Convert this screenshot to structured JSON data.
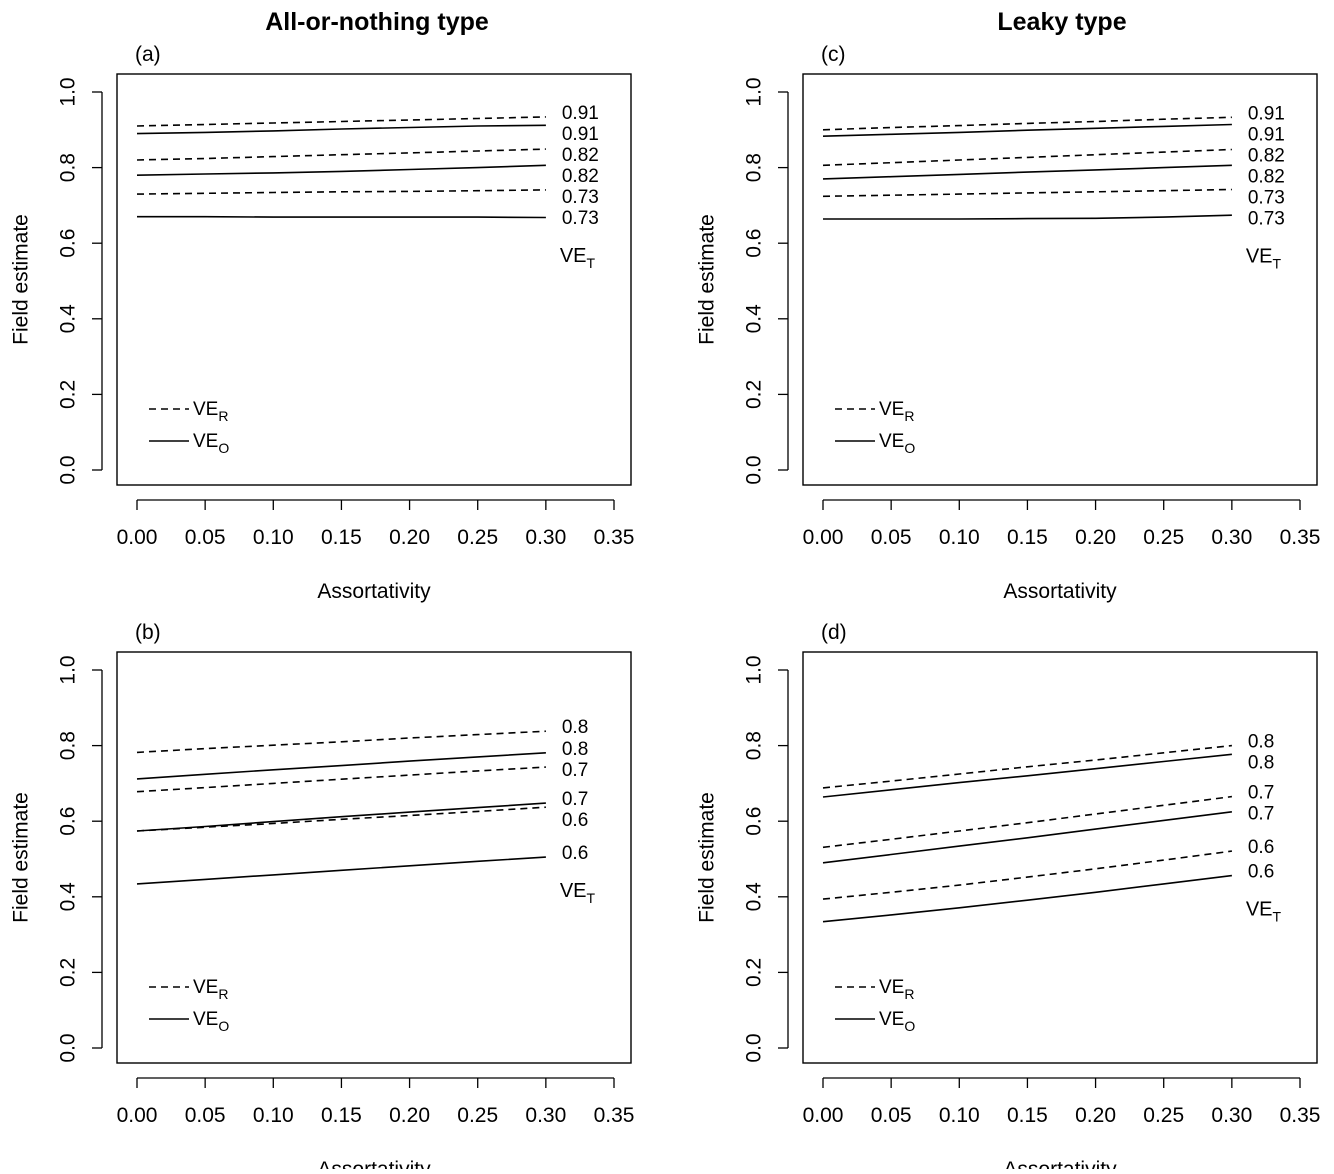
{
  "column_titles": [
    "All-or-nothing type",
    "Leaky type"
  ],
  "chart_data": [
    {
      "type": "line",
      "panel_label": "(a)",
      "xlabel": "Assortativity",
      "ylabel": "Field estimate",
      "xlim": [
        0,
        0.35
      ],
      "ylim": [
        0,
        1
      ],
      "x_ticks": [
        "0.00",
        "0.05",
        "0.10",
        "0.15",
        "0.20",
        "0.25",
        "0.30",
        "0.35"
      ],
      "y_ticks": [
        "0.0",
        "0.2",
        "0.4",
        "0.6",
        "0.8",
        "1.0"
      ],
      "x": [
        0,
        0.05,
        0.1,
        0.15,
        0.2,
        0.25,
        0.3
      ],
      "series": [
        {
          "line_style": "dashed",
          "end_label": "0.91",
          "values": [
            0.91,
            0.914,
            0.918,
            0.922,
            0.926,
            0.93,
            0.934
          ]
        },
        {
          "line_style": "solid",
          "end_label": "0.91",
          "values": [
            0.89,
            0.893,
            0.897,
            0.902,
            0.906,
            0.91,
            0.912
          ]
        },
        {
          "line_style": "dashed",
          "end_label": "0.82",
          "values": [
            0.82,
            0.824,
            0.829,
            0.834,
            0.839,
            0.844,
            0.849
          ]
        },
        {
          "line_style": "solid",
          "end_label": "0.82",
          "values": [
            0.78,
            0.783,
            0.786,
            0.79,
            0.795,
            0.8,
            0.806
          ]
        },
        {
          "line_style": "dashed",
          "end_label": "0.73",
          "values": [
            0.73,
            0.732,
            0.734,
            0.736,
            0.737,
            0.739,
            0.741
          ]
        },
        {
          "line_style": "solid",
          "end_label": "0.73",
          "values": [
            0.67,
            0.67,
            0.669,
            0.669,
            0.669,
            0.669,
            0.668
          ]
        }
      ],
      "annotation": {
        "text": "VE",
        "sub": "T"
      },
      "legend": {
        "position": "bottom-left",
        "entries": [
          {
            "text": "VE",
            "sub": "R",
            "line_style": "dashed"
          },
          {
            "text": "VE",
            "sub": "O",
            "line_style": "solid"
          }
        ]
      }
    },
    {
      "type": "line",
      "panel_label": "(b)",
      "xlabel": "Assortativity",
      "ylabel": "Field estimate",
      "xlim": [
        0,
        0.35
      ],
      "ylim": [
        0,
        1
      ],
      "x_ticks": [
        "0.00",
        "0.05",
        "0.10",
        "0.15",
        "0.20",
        "0.25",
        "0.30",
        "0.35"
      ],
      "y_ticks": [
        "0.0",
        "0.2",
        "0.4",
        "0.6",
        "0.8",
        "1.0"
      ],
      "x": [
        0,
        0.05,
        0.1,
        0.15,
        0.2,
        0.25,
        0.3
      ],
      "series": [
        {
          "line_style": "dashed",
          "end_label": "0.8",
          "values": [
            0.782,
            0.792,
            0.801,
            0.81,
            0.82,
            0.829,
            0.838
          ]
        },
        {
          "line_style": "solid",
          "end_label": "0.8",
          "values": [
            0.712,
            0.724,
            0.736,
            0.747,
            0.759,
            0.77,
            0.781
          ]
        },
        {
          "line_style": "dashed",
          "end_label": "0.7",
          "values": [
            0.678,
            0.689,
            0.7,
            0.711,
            0.722,
            0.733,
            0.743
          ]
        },
        {
          "line_style": "solid",
          "end_label": "0.7",
          "values": [
            0.574,
            0.586,
            0.599,
            0.612,
            0.624,
            0.636,
            0.648
          ]
        },
        {
          "line_style": "dashed",
          "end_label": "0.6",
          "values": [
            0.574,
            0.584,
            0.594,
            0.605,
            0.615,
            0.626,
            0.637
          ]
        },
        {
          "line_style": "solid",
          "end_label": "0.6",
          "values": [
            0.434,
            0.446,
            0.458,
            0.47,
            0.482,
            0.494,
            0.505
          ]
        }
      ],
      "annotation": {
        "text": "VE",
        "sub": "T"
      },
      "legend": {
        "position": "bottom-left",
        "entries": [
          {
            "text": "VE",
            "sub": "R",
            "line_style": "dashed"
          },
          {
            "text": "VE",
            "sub": "O",
            "line_style": "solid"
          }
        ]
      }
    },
    {
      "type": "line",
      "panel_label": "(c)",
      "xlabel": "Assortativity",
      "ylabel": "Field estimate",
      "xlim": [
        0,
        0.35
      ],
      "ylim": [
        0,
        1
      ],
      "x_ticks": [
        "0.00",
        "0.05",
        "0.10",
        "0.15",
        "0.20",
        "0.25",
        "0.30",
        "0.35"
      ],
      "y_ticks": [
        "0.0",
        "0.2",
        "0.4",
        "0.6",
        "0.8",
        "1.0"
      ],
      "x": [
        0,
        0.05,
        0.1,
        0.15,
        0.2,
        0.25,
        0.3
      ],
      "series": [
        {
          "line_style": "dashed",
          "end_label": "0.91",
          "values": [
            0.9,
            0.906,
            0.911,
            0.917,
            0.922,
            0.928,
            0.933
          ]
        },
        {
          "line_style": "solid",
          "end_label": "0.91",
          "values": [
            0.883,
            0.888,
            0.893,
            0.899,
            0.904,
            0.909,
            0.914
          ]
        },
        {
          "line_style": "dashed",
          "end_label": "0.82",
          "values": [
            0.806,
            0.813,
            0.82,
            0.827,
            0.834,
            0.841,
            0.848
          ]
        },
        {
          "line_style": "solid",
          "end_label": "0.82",
          "values": [
            0.77,
            0.776,
            0.782,
            0.788,
            0.794,
            0.8,
            0.806
          ]
        },
        {
          "line_style": "dashed",
          "end_label": "0.73",
          "values": [
            0.724,
            0.727,
            0.73,
            0.733,
            0.736,
            0.739,
            0.742
          ]
        },
        {
          "line_style": "solid",
          "end_label": "0.73",
          "values": [
            0.664,
            0.664,
            0.664,
            0.665,
            0.666,
            0.669,
            0.674
          ]
        }
      ],
      "annotation": {
        "text": "VE",
        "sub": "T"
      },
      "legend": {
        "position": "bottom-left",
        "entries": [
          {
            "text": "VE",
            "sub": "R",
            "line_style": "dashed"
          },
          {
            "text": "VE",
            "sub": "O",
            "line_style": "solid"
          }
        ]
      }
    },
    {
      "type": "line",
      "panel_label": "(d)",
      "xlabel": "Assortativity",
      "ylabel": "Field estimate",
      "xlim": [
        0,
        0.35
      ],
      "ylim": [
        0,
        1
      ],
      "x_ticks": [
        "0.00",
        "0.05",
        "0.10",
        "0.15",
        "0.20",
        "0.25",
        "0.30",
        "0.35"
      ],
      "y_ticks": [
        "0.0",
        "0.2",
        "0.4",
        "0.6",
        "0.8",
        "1.0"
      ],
      "x": [
        0,
        0.05,
        0.1,
        0.15,
        0.2,
        0.25,
        0.3
      ],
      "series": [
        {
          "line_style": "dashed",
          "end_label": "0.8",
          "values": [
            0.688,
            0.706,
            0.725,
            0.744,
            0.762,
            0.781,
            0.8
          ]
        },
        {
          "line_style": "solid",
          "end_label": "0.8",
          "values": [
            0.664,
            0.683,
            0.702,
            0.72,
            0.739,
            0.758,
            0.777
          ]
        },
        {
          "line_style": "dashed",
          "end_label": "0.7",
          "values": [
            0.531,
            0.552,
            0.574,
            0.596,
            0.619,
            0.642,
            0.665
          ]
        },
        {
          "line_style": "solid",
          "end_label": "0.7",
          "values": [
            0.49,
            0.512,
            0.534,
            0.556,
            0.579,
            0.602,
            0.625
          ]
        },
        {
          "line_style": "dashed",
          "end_label": "0.6",
          "values": [
            0.394,
            0.412,
            0.431,
            0.452,
            0.474,
            0.497,
            0.521
          ]
        },
        {
          "line_style": "solid",
          "end_label": "0.6",
          "values": [
            0.334,
            0.352,
            0.371,
            0.391,
            0.412,
            0.434,
            0.456
          ]
        }
      ],
      "annotation": {
        "text": "VE",
        "sub": "T"
      },
      "legend": {
        "position": "bottom-left",
        "entries": [
          {
            "text": "VE",
            "sub": "R",
            "line_style": "dashed"
          },
          {
            "text": "VE",
            "sub": "O",
            "line_style": "solid"
          }
        ]
      }
    }
  ]
}
